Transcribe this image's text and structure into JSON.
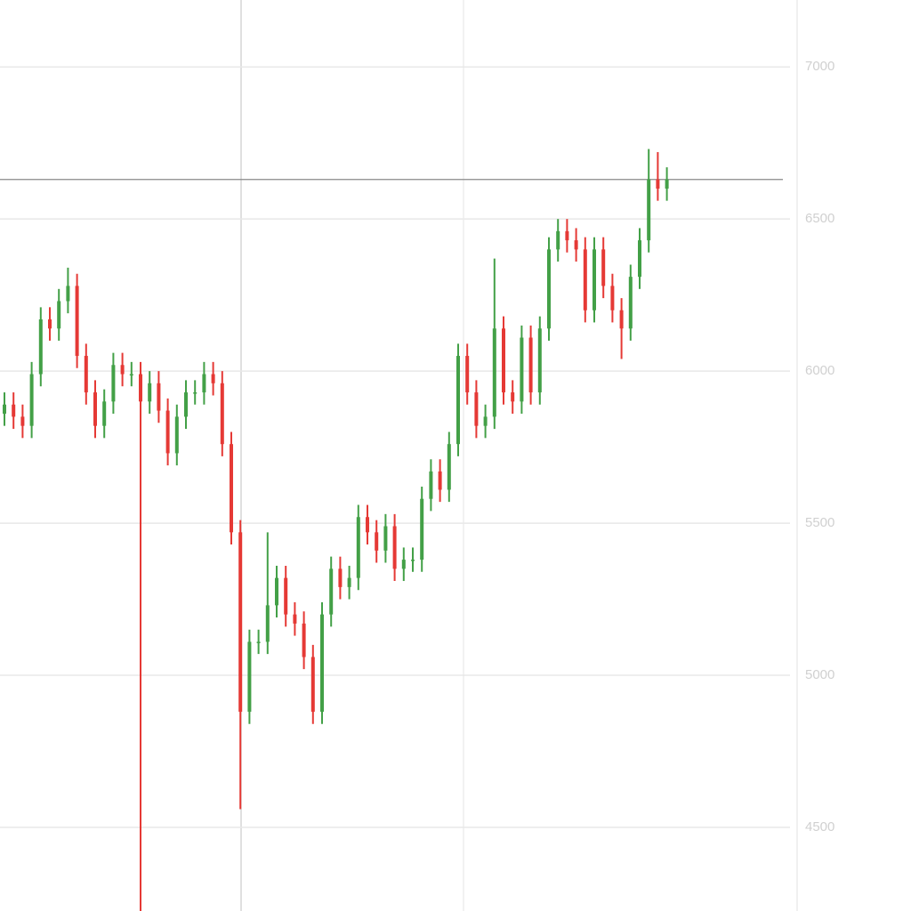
{
  "chart_data": {
    "type": "candlestick",
    "up_color": "#43a047",
    "down_color": "#e53935",
    "grid": true,
    "ylim": [
      4225,
      7220
    ],
    "yticks": [
      7000,
      6500,
      6000,
      5500,
      5000,
      4500
    ],
    "open": [
      5860,
      5890,
      5850,
      5820,
      5990,
      6170,
      6140,
      6230,
      6280,
      6050,
      5930,
      5820,
      5900,
      6020,
      5990,
      5990,
      5900,
      5960,
      5870,
      5730,
      5850,
      5930,
      5930,
      5990,
      5960,
      5760,
      5470,
      4880,
      5110,
      5110,
      5230,
      5320,
      5200,
      5170,
      5060,
      4880,
      5200,
      5350,
      5290,
      5320,
      5520,
      5470,
      5410,
      5490,
      5350,
      5380,
      5380,
      5580,
      5670,
      5610,
      5760,
      6050,
      5930,
      5820,
      5850,
      6140,
      5930,
      5900,
      6110,
      5930,
      6140,
      6400,
      6460,
      6430,
      6400,
      6200,
      6400,
      6280,
      6200,
      6140,
      6310,
      6430,
      6630,
      6600
    ],
    "high": [
      5930,
      5930,
      5890,
      6030,
      6210,
      6210,
      6270,
      6340,
      6320,
      6090,
      5970,
      5940,
      6060,
      6060,
      6030,
      6030,
      6000,
      6000,
      5910,
      5890,
      5970,
      5970,
      6030,
      6030,
      6000,
      5800,
      5510,
      5150,
      5150,
      5470,
      5360,
      5360,
      5240,
      5210,
      5100,
      5240,
      5390,
      5390,
      5360,
      5560,
      5560,
      5510,
      5530,
      5530,
      5420,
      5420,
      5620,
      5710,
      5710,
      5800,
      6090,
      6090,
      5970,
      5890,
      6370,
      6180,
      5970,
      6150,
      6150,
      6180,
      6440,
      6500,
      6500,
      6470,
      6440,
      6440,
      6440,
      6320,
      6240,
      6350,
      6470,
      6730,
      6720,
      6670
    ],
    "low": [
      5820,
      5810,
      5780,
      5780,
      5950,
      6100,
      6100,
      6190,
      6010,
      5890,
      5780,
      5780,
      5860,
      5950,
      5950,
      4100,
      5860,
      5830,
      5690,
      5690,
      5810,
      5890,
      5890,
      5920,
      5720,
      5430,
      4560,
      4840,
      5070,
      5070,
      5190,
      5160,
      5130,
      5020,
      4840,
      4840,
      5160,
      5250,
      5250,
      5280,
      5430,
      5370,
      5370,
      5310,
      5310,
      5340,
      5340,
      5540,
      5570,
      5570,
      5720,
      5890,
      5780,
      5780,
      5810,
      5890,
      5860,
      5860,
      5890,
      5890,
      6100,
      6360,
      6390,
      6360,
      6160,
      6160,
      6240,
      6160,
      6040,
      6100,
      6270,
      6390,
      6560,
      6560
    ],
    "close": [
      5890,
      5850,
      5820,
      5990,
      6170,
      6140,
      6230,
      6280,
      6050,
      5930,
      5820,
      5900,
      6020,
      5990,
      5990,
      5900,
      5960,
      5870,
      5730,
      5850,
      5930,
      5930,
      5990,
      5960,
      5760,
      5470,
      4880,
      5110,
      5110,
      5230,
      5320,
      5200,
      5170,
      5060,
      4880,
      5200,
      5350,
      5290,
      5320,
      5520,
      5470,
      5410,
      5490,
      5350,
      5380,
      5380,
      5580,
      5670,
      5610,
      5760,
      6050,
      5930,
      5820,
      5850,
      6140,
      5930,
      5900,
      6110,
      5930,
      6140,
      6400,
      6460,
      6430,
      6400,
      6200,
      6400,
      6280,
      6200,
      6140,
      6310,
      6430,
      6630,
      6600,
      6630
    ]
  }
}
